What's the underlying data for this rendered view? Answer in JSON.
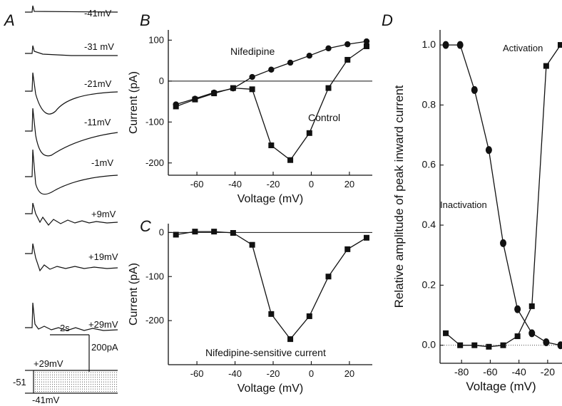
{
  "panels": {
    "A": "A",
    "B": "B",
    "C": "C",
    "D": "D"
  },
  "traces": {
    "labels": [
      "-41mV",
      "-31 mV",
      "-21mV",
      "-11mV",
      "-1mV",
      "+9mV",
      "+19mV",
      "+29mV"
    ],
    "scale_time": "2s",
    "scale_current": "200pA",
    "protocol": {
      "holding": "-51",
      "top": "+29mV",
      "bottom": "-41mV"
    }
  },
  "chart_data": [
    {
      "panel": "B",
      "type": "line",
      "xlabel": "Voltage (mV)",
      "ylabel": "Current (pA)",
      "xlim": [
        -75,
        32
      ],
      "ylim": [
        -230,
        125
      ],
      "xticks": [
        -60,
        -40,
        -20,
        0,
        20
      ],
      "yticks": [
        -200,
        -100,
        0,
        100
      ],
      "zero_line": true,
      "series": [
        {
          "name": "Nifedipine",
          "marker": "circle",
          "x": [
            -71,
            -61,
            -51,
            -41,
            -31,
            -21,
            -11,
            -1,
            9,
            19,
            29
          ],
          "y": [
            -57,
            -43,
            -28,
            -18,
            10,
            28,
            45,
            62,
            80,
            90,
            97
          ]
        },
        {
          "name": "Control",
          "marker": "square",
          "x": [
            -71,
            -61,
            -51,
            -41,
            -31,
            -21,
            -11,
            -1,
            9,
            19,
            29
          ],
          "y": [
            -62,
            -45,
            -30,
            -17,
            -20,
            -157,
            -193,
            -127,
            -17,
            52,
            85
          ]
        }
      ]
    },
    {
      "panel": "C",
      "type": "line",
      "xlabel": "Voltage (mV)",
      "ylabel": "Current (pA)",
      "xlim": [
        -75,
        32
      ],
      "ylim": [
        -300,
        20
      ],
      "xticks": [
        -60,
        -40,
        -20,
        0,
        20
      ],
      "yticks": [
        -200,
        -100,
        0
      ],
      "zero_line": true,
      "annotation": "Nifedipine-sensitive current",
      "series": [
        {
          "name": "Nifedipine-sensitive current",
          "marker": "square",
          "x": [
            -71,
            -61,
            -51,
            -41,
            -31,
            -21,
            -11,
            -1,
            9,
            19,
            29
          ],
          "y": [
            -5,
            2,
            2,
            -1,
            -28,
            -185,
            -242,
            -190,
            -100,
            -38,
            -12
          ]
        }
      ]
    },
    {
      "panel": "D",
      "type": "line",
      "xlabel": "Voltage (mV)",
      "ylabel": "Relative amplitude of peak inward current",
      "xlim": [
        -95,
        -10
      ],
      "ylim": [
        -0.06,
        1.05
      ],
      "xticks": [
        -80,
        -60,
        -40,
        -20
      ],
      "yticks": [
        0.0,
        0.2,
        0.4,
        0.6,
        0.8,
        1.0
      ],
      "ytick_labels": [
        "0.0",
        "0.2",
        "0.4",
        "0.6",
        "0.8",
        "1.0"
      ],
      "zero_line": true,
      "series": [
        {
          "name": "Inactivation",
          "marker": "circle",
          "x": [
            -91,
            -81,
            -71,
            -61,
            -51,
            -41,
            -31,
            -21,
            -11
          ],
          "y": [
            1.0,
            1.0,
            0.85,
            0.65,
            0.34,
            0.12,
            0.04,
            0.01,
            0.0
          ]
        },
        {
          "name": "Activation",
          "marker": "square",
          "x": [
            -91,
            -81,
            -71,
            -61,
            -51,
            -41,
            -31,
            -21,
            -11
          ],
          "y": [
            0.04,
            0.0,
            0.0,
            -0.005,
            0.0,
            0.03,
            0.13,
            0.93,
            1.0
          ]
        }
      ]
    }
  ]
}
